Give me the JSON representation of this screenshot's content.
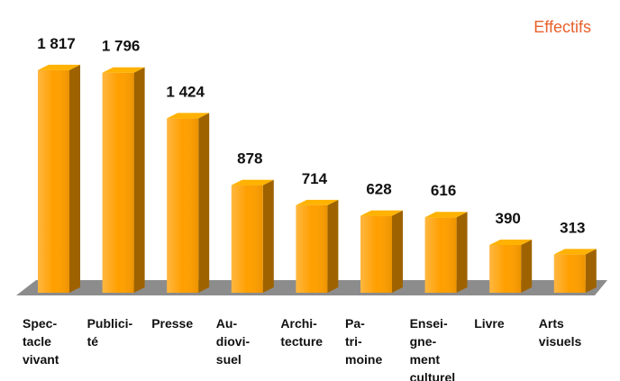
{
  "chart_data": {
    "type": "bar3d",
    "title": "Effectifs",
    "categories": [
      "Spec-\ntacle\nvivant",
      "Publici-\nté",
      "Presse",
      "Au-\ndiovi-\nsuel",
      "Archi-\ntecture",
      "Pa-\ntri-\nmoine",
      "Ensei-\ngne-\nment\nculturel",
      "Livre",
      "Arts\nvisuels"
    ],
    "values": [
      1817,
      1796,
      1424,
      878,
      714,
      628,
      616,
      390,
      313
    ],
    "value_labels": [
      "1 817",
      "1 796",
      "1 424",
      "878",
      "714",
      "628",
      "616",
      "390",
      "313"
    ],
    "color": "#ff9f00",
    "ylim": [
      0,
      2000
    ]
  }
}
